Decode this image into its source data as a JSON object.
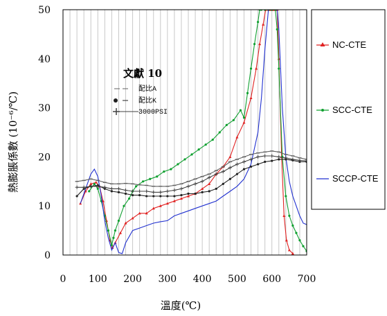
{
  "chart_data": {
    "type": "line",
    "xlabel": "溫度(℃)",
    "ylabel": "熱膨脹係數 (10⁻⁶/℃)",
    "xlim": [
      0,
      700
    ],
    "ylim": [
      0,
      50
    ],
    "xticks": [
      0,
      100,
      200,
      300,
      400,
      500,
      600,
      700
    ],
    "yticks": [
      0,
      10,
      20,
      30,
      40,
      50
    ],
    "grid": "vertical",
    "legend_position": "right",
    "series": [
      {
        "name": "NC-CTE",
        "color": "#e02020",
        "marker": "triangle",
        "x": [
          50,
          65,
          80,
          95,
          105,
          115,
          125,
          135,
          142,
          150,
          165,
          180,
          200,
          220,
          240,
          260,
          280,
          300,
          320,
          340,
          360,
          380,
          400,
          420,
          440,
          460,
          480,
          500,
          520,
          540,
          555,
          565,
          575,
          582,
          590,
          595,
          600,
          605,
          610,
          615,
          620,
          628,
          635,
          642,
          650,
          660
        ],
        "y": [
          10.5,
          13.0,
          14.5,
          14.8,
          14.0,
          11.0,
          7.0,
          3.0,
          1.5,
          2.5,
          4.5,
          6.5,
          7.5,
          8.5,
          8.5,
          9.5,
          10.0,
          10.5,
          11.0,
          11.5,
          12.0,
          12.5,
          13.5,
          14.5,
          16.5,
          18.0,
          20.0,
          24.0,
          27.0,
          32.0,
          38.0,
          43.0,
          47.0,
          50.0,
          50.0,
          50.0,
          50.0,
          50.0,
          50.0,
          50.0,
          40.0,
          20.0,
          8.0,
          3.0,
          1.0,
          0.3
        ]
      },
      {
        "name": "SCC-CTE",
        "color": "#10a030",
        "marker": "dot",
        "x": [
          75,
          90,
          100,
          110,
          120,
          130,
          140,
          145,
          150,
          160,
          175,
          190,
          200,
          210,
          230,
          250,
          270,
          290,
          310,
          330,
          350,
          370,
          390,
          410,
          430,
          450,
          470,
          490,
          510,
          520,
          530,
          540,
          550,
          560,
          565,
          570,
          580,
          590,
          600,
          610,
          615,
          620,
          630,
          640,
          650,
          660,
          670,
          680,
          690,
          700
        ],
        "y": [
          13.0,
          14.5,
          13.5,
          11.0,
          8.0,
          5.0,
          2.0,
          3.5,
          5.0,
          7.0,
          10.0,
          11.5,
          13.0,
          14.0,
          15.0,
          15.5,
          16.0,
          17.0,
          17.5,
          18.5,
          19.5,
          20.5,
          21.5,
          22.5,
          23.5,
          25.0,
          26.5,
          27.5,
          29.5,
          28.0,
          33.0,
          38.0,
          43.0,
          47.5,
          50.0,
          50.0,
          50.0,
          50.0,
          50.0,
          50.0,
          46.0,
          38.0,
          20.0,
          12.0,
          8.0,
          6.0,
          4.5,
          3.0,
          1.8,
          0.8
        ]
      },
      {
        "name": "SCCP-CTE",
        "color": "#2030d0",
        "marker": "none",
        "x": [
          50,
          65,
          80,
          90,
          100,
          110,
          120,
          130,
          140,
          150,
          160,
          170,
          180,
          200,
          220,
          240,
          260,
          280,
          300,
          320,
          340,
          360,
          380,
          400,
          420,
          440,
          460,
          480,
          500,
          520,
          540,
          560,
          570,
          580,
          590,
          600,
          605,
          610,
          615,
          620,
          630,
          640,
          650,
          660,
          670,
          680,
          690,
          700
        ],
        "y": [
          10.5,
          13.5,
          16.5,
          17.5,
          16.0,
          12.0,
          7.0,
          3.5,
          1.0,
          2.5,
          0.5,
          0.3,
          2.5,
          5.0,
          5.5,
          6.0,
          6.5,
          6.8,
          7.0,
          8.0,
          8.5,
          9.0,
          9.5,
          10.0,
          10.5,
          11.0,
          12.0,
          13.0,
          14.0,
          15.5,
          18.5,
          25.0,
          32.0,
          42.0,
          50.0,
          50.0,
          50.0,
          50.0,
          50.0,
          46.0,
          30.0,
          20.0,
          15.0,
          12.0,
          10.0,
          8.0,
          6.5,
          6.2
        ]
      },
      {
        "name": "配比A",
        "color": "#606060",
        "marker": "dash",
        "x": [
          40,
          60,
          80,
          100,
          120,
          140,
          160,
          180,
          200,
          220,
          240,
          260,
          280,
          300,
          320,
          340,
          360,
          380,
          400,
          420,
          440,
          460,
          480,
          500,
          520,
          540,
          560,
          580,
          600,
          620,
          640,
          660,
          680,
          700
        ],
        "y": [
          15.0,
          15.2,
          15.5,
          15.2,
          14.8,
          14.5,
          14.5,
          14.6,
          14.5,
          14.3,
          14.2,
          14.0,
          14.0,
          14.0,
          14.2,
          14.5,
          15.0,
          15.5,
          16.0,
          16.5,
          17.2,
          18.0,
          19.0,
          19.5,
          20.0,
          20.5,
          20.8,
          21.0,
          21.2,
          21.0,
          20.5,
          20.2,
          19.8,
          19.5
        ]
      },
      {
        "name": "配比K",
        "color": "#202020",
        "marker": "dot",
        "x": [
          40,
          60,
          80,
          100,
          120,
          140,
          160,
          180,
          200,
          220,
          240,
          260,
          280,
          300,
          320,
          340,
          360,
          380,
          400,
          420,
          440,
          460,
          480,
          500,
          520,
          540,
          560,
          580,
          600,
          620,
          640,
          660,
          680,
          700
        ],
        "y": [
          12.0,
          13.5,
          14.0,
          14.2,
          13.5,
          13.0,
          12.8,
          12.5,
          12.2,
          12.2,
          12.0,
          12.0,
          12.0,
          12.0,
          12.0,
          12.2,
          12.5,
          12.5,
          12.8,
          13.0,
          13.5,
          14.5,
          15.5,
          16.5,
          17.5,
          18.0,
          18.5,
          19.0,
          19.2,
          19.5,
          19.5,
          19.3,
          19.0,
          19.0
        ]
      },
      {
        "name": "3000PSI",
        "color": "#404040",
        "marker": "plus",
        "x": [
          40,
          60,
          80,
          100,
          120,
          140,
          160,
          180,
          200,
          220,
          240,
          260,
          280,
          300,
          320,
          340,
          360,
          380,
          400,
          420,
          440,
          460,
          480,
          500,
          520,
          540,
          560,
          580,
          600,
          620,
          640,
          660,
          680,
          700
        ],
        "y": [
          13.8,
          13.8,
          14.0,
          14.0,
          13.8,
          13.5,
          13.5,
          13.2,
          13.0,
          13.0,
          13.0,
          12.8,
          12.8,
          13.0,
          13.2,
          13.5,
          14.0,
          14.5,
          15.0,
          15.8,
          16.5,
          17.0,
          17.8,
          18.5,
          19.0,
          19.5,
          20.0,
          20.2,
          20.2,
          20.0,
          19.8,
          19.5,
          19.3,
          19.2
        ]
      }
    ],
    "inset": {
      "title": "文獻 10",
      "entries": [
        "配比A",
        "配比K",
        "3000PSI"
      ]
    },
    "legend": [
      "NC-CTE",
      "SCC-CTE",
      "SCCP-CTE"
    ]
  }
}
